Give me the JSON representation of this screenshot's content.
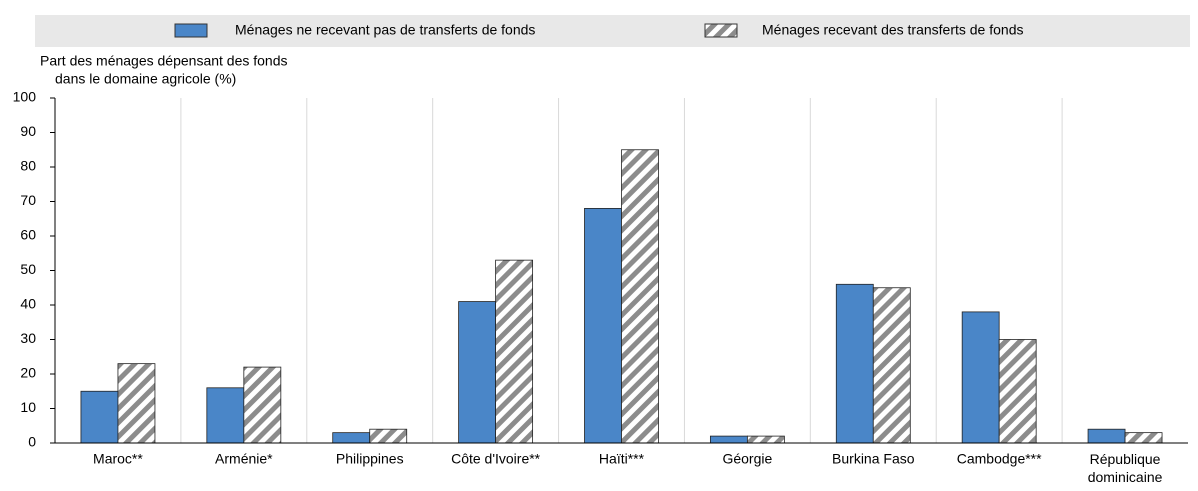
{
  "chart_data": {
    "type": "bar",
    "y_axis_label": [
      "Part des ménages dépensant des fonds",
      "dans le domaine agricole (%)"
    ],
    "categories": [
      "Maroc**",
      "Arménie*",
      "Philippines",
      "Côte d'Ivoire**",
      "Haïti***",
      "Géorgie",
      "Burkina Faso",
      "Cambodge***",
      "République dominicaine"
    ],
    "series": [
      {
        "name": "Ménages ne recevant pas de transferts de fonds",
        "color": "#4a86c8",
        "values": [
          15,
          16,
          3,
          41,
          68,
          2,
          46,
          38,
          4
        ]
      },
      {
        "name": "Ménages recevant des transferts de fonds",
        "color": "hatched",
        "values": [
          23,
          22,
          4,
          53,
          85,
          2,
          45,
          30,
          3
        ]
      }
    ],
    "ylim": [
      0,
      100
    ],
    "yticks": [
      0,
      10,
      20,
      30,
      40,
      50,
      60,
      70,
      80,
      90,
      100
    ]
  }
}
